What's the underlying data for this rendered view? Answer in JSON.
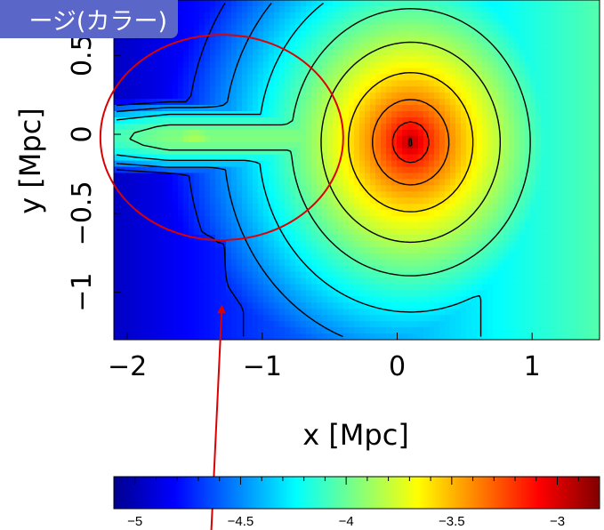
{
  "header": {
    "title_fragment": "ージ(カラー)"
  },
  "chart_data": {
    "type": "heatmap",
    "title": "",
    "xlabel": "x [Mpc]",
    "ylabel": "y [Mpc]",
    "xlim": [
      -2.1,
      1.5
    ],
    "ylim": [
      -1.3,
      0.85
    ],
    "x_ticks": [
      {
        "value": -2,
        "label": "−2"
      },
      {
        "value": -1,
        "label": "−1"
      },
      {
        "value": 0,
        "label": "0"
      },
      {
        "value": 1,
        "label": "1"
      }
    ],
    "y_ticks": [
      {
        "value": 0.5,
        "label": "0.5"
      },
      {
        "value": 0,
        "label": "0"
      },
      {
        "value": -0.5,
        "label": "−0.5"
      },
      {
        "value": -1,
        "label": "−1"
      }
    ],
    "colorbar": {
      "range": [
        -5.1,
        -2.8
      ],
      "ticks": [
        {
          "value": -5,
          "label": "−5"
        },
        {
          "value": -4.5,
          "label": "−4.5"
        },
        {
          "value": -4,
          "label": "−4"
        },
        {
          "value": -3.5,
          "label": "−3.5"
        },
        {
          "value": -3,
          "label": "−3"
        }
      ],
      "colormap": "jet"
    },
    "peak": {
      "x": 0.1,
      "y": -0.05,
      "value": -2.85
    },
    "contours": {
      "count": 9,
      "color": "#000000"
    },
    "annotations": [
      {
        "type": "ellipse",
        "center": [
          -1.3,
          -0.02
        ],
        "semi_axes": [
          0.9,
          0.65
        ],
        "color": "#dd0000"
      },
      {
        "type": "arrow",
        "from": [
          -1.38,
          -2.55
        ],
        "to": [
          -1.3,
          -1.1
        ],
        "color": "#dd0000"
      }
    ]
  }
}
